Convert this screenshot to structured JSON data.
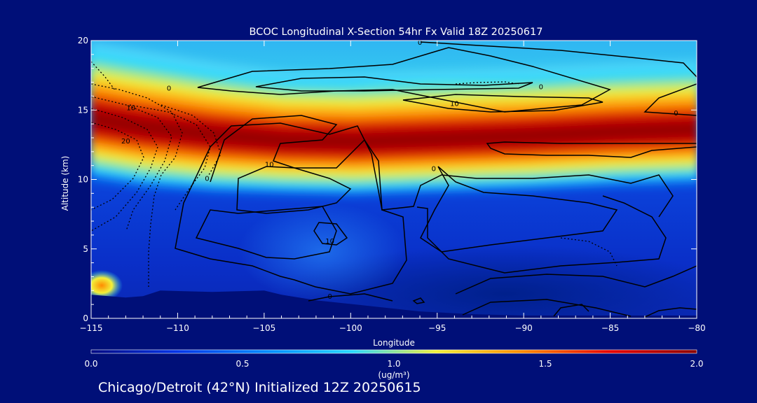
{
  "chart_data": {
    "type": "heatmap",
    "title": "BCOC Longitudinal X-Section 54hr  Fx Valid 18Z 20250617",
    "xlabel": "Longitude",
    "ylabel": "Altitude (km)",
    "xlim": [
      -115,
      -80
    ],
    "ylim": [
      0,
      20
    ],
    "x_ticks": [
      -115,
      -110,
      -105,
      -100,
      -95,
      -90,
      -85,
      -80
    ],
    "x_tick_labels": [
      "−115",
      "−110",
      "−105",
      "−100",
      "−95",
      "−90",
      "−85",
      "−80"
    ],
    "y_ticks": [
      0,
      5,
      10,
      15,
      20
    ],
    "y_tick_labels": [
      "0",
      "5",
      "10",
      "15",
      "20"
    ],
    "colorbar": {
      "min": 0.0,
      "max": 2.0,
      "ticks": [
        0.0,
        0.5,
        1.0,
        1.5,
        2.0
      ],
      "tick_labels": [
        "0.0",
        "0.5",
        "1.0",
        "1.5",
        "2.0"
      ],
      "units_label": "(ug/m³)",
      "colors": [
        "#000a82",
        "#0033e6",
        "#008cff",
        "#26d8ff",
        "#f2f03a",
        "#ff8c00",
        "#e60000",
        "#8a0000"
      ]
    },
    "band_peak": [
      {
        "lon": -115,
        "alt": 14.9,
        "width": 1.0
      },
      {
        "lon": -112,
        "alt": 14.3,
        "width": 1.0
      },
      {
        "lon": -108,
        "alt": 13.7,
        "width": 0.95
      },
      {
        "lon": -104,
        "alt": 13.3,
        "width": 0.9
      },
      {
        "lon": -100,
        "alt": 13.2,
        "width": 0.9
      },
      {
        "lon": -95,
        "alt": 13.4,
        "width": 0.9
      },
      {
        "lon": -90,
        "alt": 13.6,
        "width": 0.9
      },
      {
        "lon": -85,
        "alt": 13.9,
        "width": 0.9
      },
      {
        "lon": -80,
        "alt": 14.1,
        "width": 0.9
      }
    ],
    "terrain": [
      {
        "lon": -115,
        "alt": 1.7
      },
      {
        "lon": -113,
        "alt": 1.5
      },
      {
        "lon": -112,
        "alt": 1.6
      },
      {
        "lon": -111,
        "alt": 2.0
      },
      {
        "lon": -108,
        "alt": 1.9
      },
      {
        "lon": -105,
        "alt": 2.0
      },
      {
        "lon": -104,
        "alt": 1.7
      },
      {
        "lon": -102,
        "alt": 1.3
      },
      {
        "lon": -99,
        "alt": 0.9
      },
      {
        "lon": -96,
        "alt": 0.5
      },
      {
        "lon": -93,
        "alt": 0.3
      },
      {
        "lon": -90,
        "alt": 0.2
      },
      {
        "lon": -85,
        "alt": 0.2
      },
      {
        "lon": -80,
        "alt": 0.2
      }
    ],
    "contour_labels": [
      {
        "text": "0",
        "lon": -96,
        "alt": 19.9
      },
      {
        "text": "0",
        "lon": -110.5,
        "alt": 16.6
      },
      {
        "text": "0",
        "lon": -89,
        "alt": 16.7
      },
      {
        "text": "10",
        "lon": -94,
        "alt": 15.5
      },
      {
        "text": "0",
        "lon": -81.2,
        "alt": 14.8
      },
      {
        "text": "10",
        "lon": -112.7,
        "alt": 15.2
      },
      {
        "text": "20",
        "lon": -113,
        "alt": 12.8
      },
      {
        "text": "10",
        "lon": -104.7,
        "alt": 11.1
      },
      {
        "text": "0",
        "lon": -95.2,
        "alt": 10.8
      },
      {
        "text": "0",
        "lon": -108.3,
        "alt": 10.1
      },
      {
        "text": "10",
        "lon": -101.2,
        "alt": 5.6
      },
      {
        "text": "0",
        "lon": -101.2,
        "alt": 1.6
      }
    ]
  },
  "footer": {
    "location_text": "Chicago/Detroit (42°N) Initialized 12Z 20250615"
  }
}
